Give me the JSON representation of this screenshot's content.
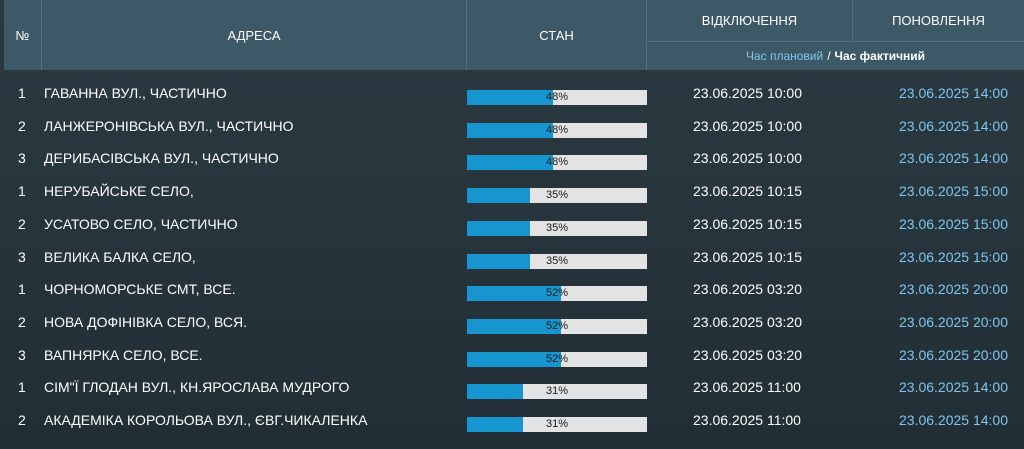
{
  "header": {
    "num": "№",
    "address": "АДРЕСА",
    "state": "СТАН",
    "off": "ВІДКЛЮЧЕННЯ",
    "update": "ПОНОВЛЕННЯ",
    "sub_planned": "Час плановий",
    "sub_sep": "/",
    "sub_actual": "Час фактичний"
  },
  "colors": {
    "header_bg": "#3d5866",
    "bar_fill": "#1795cf",
    "bar_bg": "#e3e3e3",
    "accent_text": "#7fc6ee"
  },
  "rows": [
    {
      "num": "1",
      "address": "ГАВАННА ВУЛ., ЧАСТИЧНО",
      "progress": 48,
      "progress_label": "48%",
      "off": "23.06.2025 10:00",
      "update": "23.06.2025 14:00"
    },
    {
      "num": "2",
      "address": "ЛАНЖЕРОНІВСЬКА ВУЛ., ЧАСТИЧНО",
      "progress": 48,
      "progress_label": "48%",
      "off": "23.06.2025 10:00",
      "update": "23.06.2025 14:00"
    },
    {
      "num": "3",
      "address": "ДЕРИБАСІВСЬКА ВУЛ., ЧАСТИЧНО",
      "progress": 48,
      "progress_label": "48%",
      "off": "23.06.2025 10:00",
      "update": "23.06.2025 14:00"
    },
    {
      "num": "1",
      "address": "НЕРУБАЙСЬКЕ СЕЛО,",
      "progress": 35,
      "progress_label": "35%",
      "off": "23.06.2025 10:15",
      "update": "23.06.2025 15:00"
    },
    {
      "num": "2",
      "address": "УСАТОВО СЕЛО, ЧАСТИЧНО",
      "progress": 35,
      "progress_label": "35%",
      "off": "23.06.2025 10:15",
      "update": "23.06.2025 15:00"
    },
    {
      "num": "3",
      "address": "ВЕЛИКА БАЛКА СЕЛО,",
      "progress": 35,
      "progress_label": "35%",
      "off": "23.06.2025 10:15",
      "update": "23.06.2025 15:00"
    },
    {
      "num": "1",
      "address": "ЧОРНОМОРСЬКЕ СМТ, ВСЕ.",
      "progress": 52,
      "progress_label": "52%",
      "off": "23.06.2025 03:20",
      "update": "23.06.2025 20:00"
    },
    {
      "num": "2",
      "address": "НОВА ДОФІНІВКА СЕЛО, ВСЯ.",
      "progress": 52,
      "progress_label": "52%",
      "off": "23.06.2025 03:20",
      "update": "23.06.2025 20:00"
    },
    {
      "num": "3",
      "address": "ВАПНЯРКА СЕЛО, ВСЕ.",
      "progress": 52,
      "progress_label": "52%",
      "off": "23.06.2025 03:20",
      "update": "23.06.2025 20:00"
    },
    {
      "num": "1",
      "address": "СІМ\"Ї ГЛОДАН ВУЛ., КН.ЯРОСЛАВА МУДРОГО",
      "progress": 31,
      "progress_label": "31%",
      "off": "23.06.2025 11:00",
      "update": "23.06.2025 14:00"
    },
    {
      "num": "2",
      "address": "АКАДЕМІКА КОРОЛЬОВА ВУЛ., ЄВГ.ЧИКАЛЕНКА",
      "progress": 31,
      "progress_label": "31%",
      "off": "23.06.2025 11:00",
      "update": "23.06.2025 14:00"
    }
  ]
}
